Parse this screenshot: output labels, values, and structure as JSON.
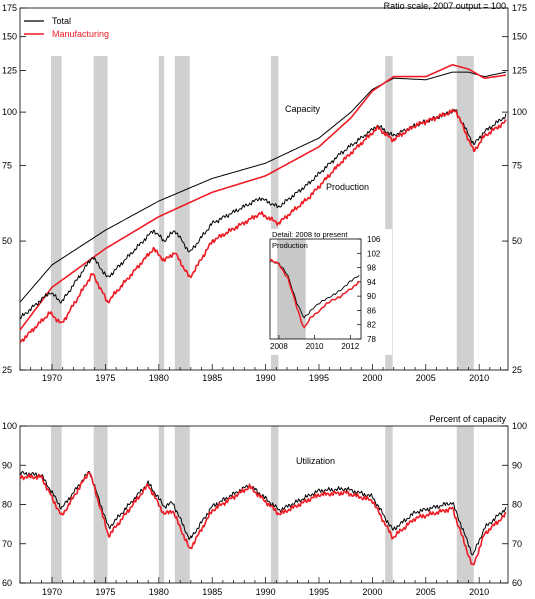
{
  "chart_data": [
    {
      "type": "line",
      "title": "Ratio scale, 2007 output = 100",
      "y_scale": "log",
      "ylim": [
        25,
        175
      ],
      "y_ticks": [
        25,
        50,
        75,
        100,
        125,
        150,
        175
      ],
      "xlim": [
        1967,
        2012.7
      ],
      "x_ticks": [
        1970,
        1975,
        1980,
        1985,
        1990,
        1995,
        2000,
        2005,
        2010
      ],
      "recessions": [
        [
          1969.9,
          1970.9
        ],
        [
          1973.9,
          1975.2
        ],
        [
          1980.0,
          1980.5
        ],
        [
          1981.5,
          1982.9
        ],
        [
          1990.5,
          1991.2
        ],
        [
          2001.2,
          2001.9
        ],
        [
          2007.9,
          2009.5
        ]
      ],
      "legend": {
        "position": "top-left",
        "entries": [
          "Total",
          "Manufacturing"
        ]
      },
      "annotations": [
        "Capacity",
        "Production"
      ],
      "colors": {
        "Total": "#000000",
        "Manufacturing": "#ee1c25",
        "recession": "#d0d0d0"
      },
      "series": [
        {
          "name": "Total",
          "kind": "capacity",
          "color": "#000000",
          "x": [
            1967,
            1970,
            1975,
            1980,
            1985,
            1990,
            1995,
            1998,
            2000,
            2002,
            2005,
            2007.5,
            2009,
            2010.5,
            2012.5
          ],
          "values": [
            36,
            44,
            53,
            62,
            70,
            76,
            87,
            100,
            113,
            120,
            119,
            124,
            124,
            121,
            124
          ]
        },
        {
          "name": "Manufacturing",
          "kind": "capacity",
          "color": "#ee1c25",
          "x": [
            1967,
            1970,
            1975,
            1980,
            1985,
            1990,
            1995,
            1998,
            2000,
            2002,
            2005,
            2007.5,
            2009,
            2010.5,
            2012.5
          ],
          "values": [
            31,
            39,
            48,
            57,
            65,
            71,
            83,
            97,
            112,
            121,
            121,
            129,
            126,
            120,
            122
          ]
        },
        {
          "name": "Total",
          "kind": "production",
          "color": "#000000",
          "x": [
            1967,
            1969.8,
            1970.9,
            1973.8,
            1975.2,
            1979.5,
            1980.5,
            1981.5,
            1982.9,
            1985,
            1989.5,
            1991.2,
            1994,
            1997,
            2000.5,
            2001.9,
            2004,
            2007.8,
            2009.5,
            2010.5,
            2012.5
          ],
          "values": [
            33,
            38,
            36,
            46,
            41,
            53,
            50,
            53,
            47,
            55,
            63,
            60,
            68,
            80,
            93,
            88,
            93,
            101,
            84,
            90,
            98
          ]
        },
        {
          "name": "Manufacturing",
          "kind": "production",
          "color": "#ee1c25",
          "x": [
            1967,
            1969.8,
            1970.9,
            1973.8,
            1975.2,
            1979.5,
            1980.5,
            1981.5,
            1982.9,
            1985,
            1989.5,
            1991.2,
            1994,
            1997,
            2000.5,
            2001.9,
            2004,
            2007.8,
            2009.5,
            2010.5,
            2012.5
          ],
          "values": [
            29,
            34,
            32,
            42,
            36,
            48,
            45,
            47,
            41,
            50,
            58,
            55,
            63,
            76,
            92,
            86,
            93,
            101,
            81,
            88,
            95
          ]
        }
      ]
    },
    {
      "type": "line",
      "title": "Detail: 2008 to present",
      "annotations": [
        "Production"
      ],
      "ylim": [
        78,
        106
      ],
      "y_ticks": [
        78,
        82,
        86,
        90,
        94,
        98,
        102,
        106
      ],
      "xlim": [
        2007.5,
        2012.6
      ],
      "x_ticks": [
        2008,
        2010,
        2012
      ],
      "recessions": [
        [
          2007.9,
          2009.5
        ]
      ],
      "series": [
        {
          "name": "Total",
          "color": "#000000",
          "x": [
            2007.5,
            2008.0,
            2008.5,
            2009.0,
            2009.4,
            2009.8,
            2010.5,
            2011.0,
            2011.5,
            2012.0,
            2012.5
          ],
          "values": [
            100,
            99,
            96,
            88,
            84,
            86,
            89,
            90,
            92,
            94,
            96
          ]
        },
        {
          "name": "Manufacturing",
          "color": "#ee1c25",
          "x": [
            2007.5,
            2008.0,
            2008.5,
            2009.0,
            2009.4,
            2009.8,
            2010.5,
            2011.0,
            2011.5,
            2012.0,
            2012.5
          ],
          "values": [
            100,
            99,
            95,
            87,
            81,
            84,
            87,
            89,
            90,
            92,
            94
          ]
        }
      ]
    },
    {
      "type": "line",
      "title": "Percent of capacity",
      "annotations": [
        "Utilization"
      ],
      "ylim": [
        60,
        100
      ],
      "y_ticks": [
        60,
        70,
        80,
        90,
        100
      ],
      "xlim": [
        1967,
        2012.7
      ],
      "x_ticks": [
        1970,
        1975,
        1980,
        1985,
        1990,
        1995,
        2000,
        2005,
        2010
      ],
      "recessions": [
        [
          1969.9,
          1970.9
        ],
        [
          1973.9,
          1975.2
        ],
        [
          1980.0,
          1980.5
        ],
        [
          1981.5,
          1982.9
        ],
        [
          1990.5,
          1991.2
        ],
        [
          2001.2,
          2001.9
        ],
        [
          2007.9,
          2009.5
        ]
      ],
      "series": [
        {
          "name": "Total",
          "color": "#000000",
          "x": [
            1967,
            1969,
            1970.9,
            1973.5,
            1975.3,
            1979,
            1980.5,
            1981.3,
            1982.9,
            1985,
            1988.5,
            1991.3,
            1995,
            1997.5,
            2000,
            2001.9,
            2004,
            2007.5,
            2009.4,
            2010.5,
            2012.5
          ],
          "values": [
            88,
            87.5,
            79,
            88.5,
            74,
            85.5,
            79.5,
            80.5,
            71,
            79.5,
            85,
            78.5,
            83.5,
            84,
            82,
            73.5,
            78,
            80.5,
            67,
            74,
            79
          ]
        },
        {
          "name": "Manufacturing",
          "color": "#ee1c25",
          "x": [
            1967,
            1969,
            1970.9,
            1973.5,
            1975.3,
            1979,
            1980.5,
            1981.3,
            1982.9,
            1985,
            1988.5,
            1991.3,
            1995,
            1997.5,
            2000,
            2001.9,
            2004,
            2007.5,
            2009.4,
            2010.5,
            2012.5
          ],
          "values": [
            87,
            87,
            77,
            88.5,
            72,
            85,
            77.5,
            78.5,
            68.5,
            78.5,
            84.5,
            77.5,
            82.5,
            83,
            81,
            71.5,
            76.5,
            79,
            64,
            72.5,
            77.5
          ]
        }
      ]
    }
  ]
}
